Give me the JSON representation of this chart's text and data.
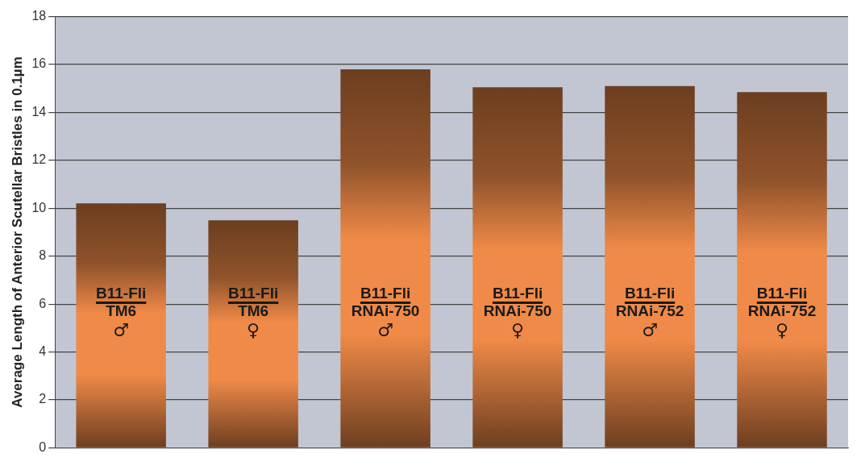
{
  "chart_data": {
    "type": "bar",
    "ylabel": "Average Length of Anterior Scutellar Bristles in 0.1µm",
    "categories": [
      "B11-Fli\nTM6\n♂",
      "B11-Fli\nTM6\n♀",
      "B11-Fli\nRNAi-750\n♂",
      "B11-Fli\nRNAi-750\n♀",
      "B11-Fli\nRNAi-752\n♂",
      "B11-Fli\nRNAi-752\n♀"
    ],
    "values": [
      10.2,
      9.5,
      15.8,
      15.05,
      15.1,
      14.85
    ],
    "color": "#f08a48",
    "ylim": [
      0,
      18
    ],
    "yticks": [
      0,
      2,
      4,
      6,
      8,
      10,
      12,
      14,
      16,
      18
    ],
    "grid": "y",
    "tick_labels": "y",
    "legend": false
  }
}
